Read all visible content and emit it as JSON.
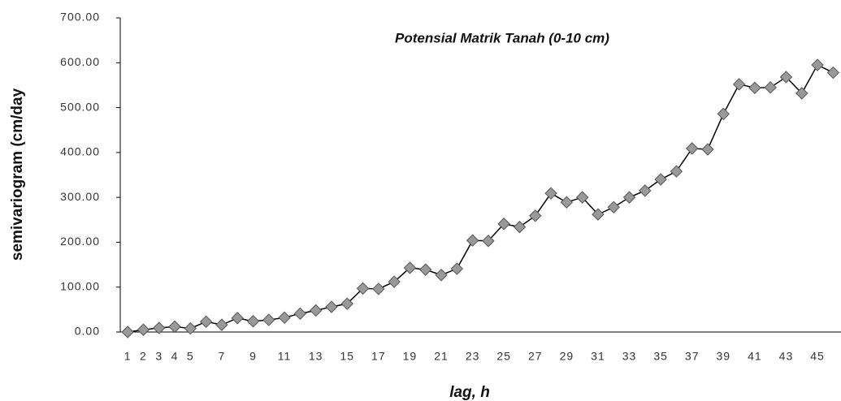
{
  "chart_data": {
    "type": "line",
    "title": "Potensial Matrik Tanah (0-10 cm)",
    "x_label": "lag, h",
    "y_label": "semivariogram (cm/day",
    "categories": [
      1,
      2,
      3,
      4,
      5,
      null,
      7,
      null,
      9,
      null,
      11,
      null,
      13,
      null,
      15,
      null,
      17,
      null,
      19,
      null,
      21,
      null,
      23,
      null,
      25,
      null,
      27,
      null,
      29,
      null,
      31,
      null,
      33,
      null,
      35,
      null,
      37,
      null,
      39,
      null,
      41,
      null,
      43,
      null,
      45,
      null
    ],
    "series": [
      {
        "color": "#000000",
        "marker_color": "#999999",
        "values": [
          0,
          5,
          9,
          12,
          8,
          23,
          16,
          31,
          24,
          27,
          32,
          41,
          48,
          56,
          63,
          97,
          96,
          112,
          143,
          139,
          127,
          141,
          204,
          203,
          241,
          234,
          259,
          309,
          289,
          300,
          262,
          278,
          300,
          315,
          340,
          358,
          409,
          407,
          486,
          552,
          544,
          545,
          568,
          532,
          595,
          578
        ]
      }
    ],
    "ylim": [
      0,
      700
    ],
    "yticks": [
      {
        "value": 0,
        "label": "0.00"
      },
      {
        "value": 100,
        "label": "100.00"
      },
      {
        "value": 200,
        "label": "200.00"
      },
      {
        "value": 300,
        "label": "300.00"
      },
      {
        "value": 400,
        "label": "400.00"
      },
      {
        "value": 500,
        "label": "500.00"
      },
      {
        "value": 600,
        "label": "600.00"
      },
      {
        "value": 700,
        "label": "700.00"
      }
    ],
    "grid": false
  }
}
